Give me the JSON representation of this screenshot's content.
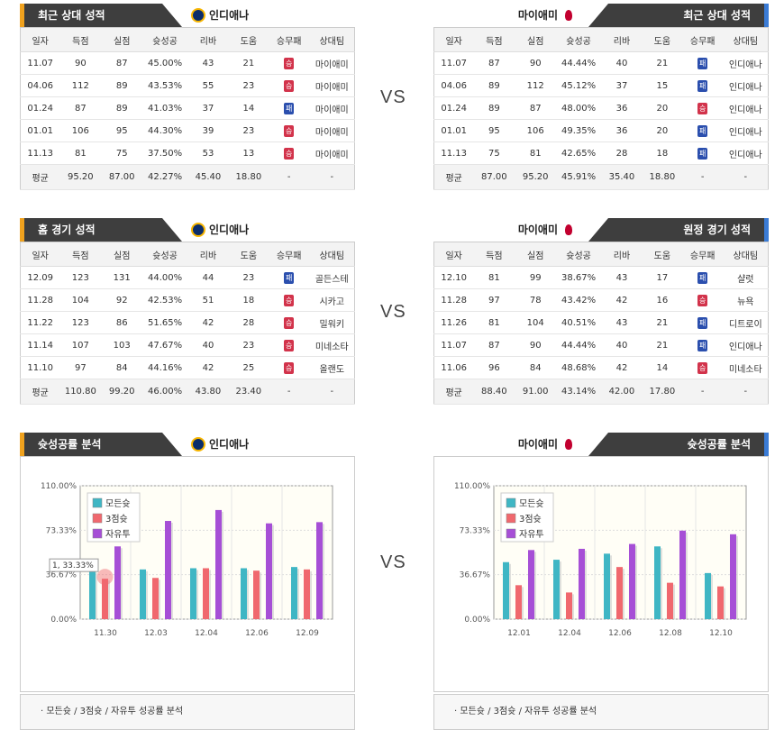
{
  "vs": "VS",
  "home_team": "인디애나",
  "away_team": "마이애미",
  "headers": [
    "일자",
    "득점",
    "실점",
    "슛성공",
    "리바",
    "도움",
    "승무패",
    "상대팀"
  ],
  "sections": [
    {
      "left_title": "최근 상대 성적",
      "right_title": "최근 상대 성적",
      "left_rows": [
        [
          "11.07",
          "90",
          "87",
          "45.00%",
          "43",
          "21",
          "W",
          "마이애미"
        ],
        [
          "04.06",
          "112",
          "89",
          "43.53%",
          "55",
          "23",
          "W",
          "마이애미"
        ],
        [
          "01.24",
          "87",
          "89",
          "41.03%",
          "37",
          "14",
          "L",
          "마이애미"
        ],
        [
          "01.01",
          "106",
          "95",
          "44.30%",
          "39",
          "23",
          "W",
          "마이애미"
        ],
        [
          "11.13",
          "81",
          "75",
          "37.50%",
          "53",
          "13",
          "W",
          "마이애미"
        ]
      ],
      "left_avg": [
        "평균",
        "95.20",
        "87.00",
        "42.27%",
        "45.40",
        "18.80",
        "-",
        "-"
      ],
      "right_rows": [
        [
          "11.07",
          "87",
          "90",
          "44.44%",
          "40",
          "21",
          "L",
          "인디애나"
        ],
        [
          "04.06",
          "89",
          "112",
          "45.12%",
          "37",
          "15",
          "L",
          "인디애나"
        ],
        [
          "01.24",
          "89",
          "87",
          "48.00%",
          "36",
          "20",
          "W",
          "인디애나"
        ],
        [
          "01.01",
          "95",
          "106",
          "49.35%",
          "36",
          "20",
          "L",
          "인디애나"
        ],
        [
          "11.13",
          "75",
          "81",
          "42.65%",
          "28",
          "18",
          "L",
          "인디애나"
        ]
      ],
      "right_avg": [
        "평균",
        "87.00",
        "95.20",
        "45.91%",
        "35.40",
        "18.80",
        "-",
        "-"
      ]
    },
    {
      "left_title": "홈 경기 성적",
      "right_title": "원정 경기 성적",
      "left_rows": [
        [
          "12.09",
          "123",
          "131",
          "44.00%",
          "44",
          "23",
          "L",
          "골든스테"
        ],
        [
          "11.28",
          "104",
          "92",
          "42.53%",
          "51",
          "18",
          "W",
          "시카고"
        ],
        [
          "11.22",
          "123",
          "86",
          "51.65%",
          "42",
          "28",
          "W",
          "밀워키"
        ],
        [
          "11.14",
          "107",
          "103",
          "47.67%",
          "40",
          "23",
          "W",
          "미네소타"
        ],
        [
          "11.10",
          "97",
          "84",
          "44.16%",
          "42",
          "25",
          "W",
          "올랜도"
        ]
      ],
      "left_avg": [
        "평균",
        "110.80",
        "99.20",
        "46.00%",
        "43.80",
        "23.40",
        "-",
        "-"
      ],
      "right_rows": [
        [
          "12.10",
          "81",
          "99",
          "38.67%",
          "43",
          "17",
          "L",
          "샬럿"
        ],
        [
          "11.28",
          "97",
          "78",
          "43.42%",
          "42",
          "16",
          "W",
          "뉴욕"
        ],
        [
          "11.26",
          "81",
          "104",
          "40.51%",
          "43",
          "21",
          "L",
          "디트로이"
        ],
        [
          "11.07",
          "87",
          "90",
          "44.44%",
          "40",
          "21",
          "L",
          "인디애나"
        ],
        [
          "11.06",
          "96",
          "84",
          "48.68%",
          "42",
          "14",
          "W",
          "미네소타"
        ]
      ],
      "right_avg": [
        "평균",
        "88.40",
        "91.00",
        "43.14%",
        "42.00",
        "17.80",
        "-",
        "-"
      ]
    }
  ],
  "wl_labels": {
    "W": "승",
    "L": "패"
  },
  "chart_section": {
    "left_title": "슛성공률 분석",
    "right_title": "슛성공률 분석",
    "footer": "·  모든슛 / 3점슛 / 자유투 성공률 분석",
    "tooltip": "1, 33.33%"
  },
  "chart_data": [
    {
      "type": "bar",
      "categories": [
        "11.30",
        "12.03",
        "12.04",
        "12.06",
        "12.09"
      ],
      "ylim": [
        0,
        110
      ],
      "ytick_labels": [
        "0.00%",
        "36.67%",
        "73.33%",
        "110.00%"
      ],
      "series": [
        {
          "name": "모든슛",
          "color": "#3fb6c4",
          "values": [
            40,
            41,
            42,
            42,
            43
          ]
        },
        {
          "name": "3점슛",
          "color": "#f0686e",
          "values": [
            33.33,
            34,
            42,
            40,
            41
          ]
        },
        {
          "name": "자유투",
          "color": "#a64fd6",
          "values": [
            60,
            81,
            90,
            79,
            80
          ]
        }
      ]
    },
    {
      "type": "bar",
      "categories": [
        "12.01",
        "12.04",
        "12.06",
        "12.08",
        "12.10"
      ],
      "ylim": [
        0,
        110
      ],
      "ytick_labels": [
        "0.00%",
        "36.67%",
        "73.33%",
        "110.00%"
      ],
      "series": [
        {
          "name": "모든슛",
          "color": "#3fb6c4",
          "values": [
            47,
            49,
            54,
            60,
            38
          ]
        },
        {
          "name": "3점슛",
          "color": "#f0686e",
          "values": [
            28,
            22,
            43,
            30,
            27
          ]
        },
        {
          "name": "자유투",
          "color": "#a64fd6",
          "values": [
            57,
            58,
            62,
            73,
            70
          ]
        }
      ]
    }
  ],
  "colors": {
    "header_dark": "#3e3e3e",
    "accent_left": "#f0a21e",
    "accent_right": "#3a7bd5",
    "win": "#d2334b",
    "loss": "#2b4fae"
  }
}
